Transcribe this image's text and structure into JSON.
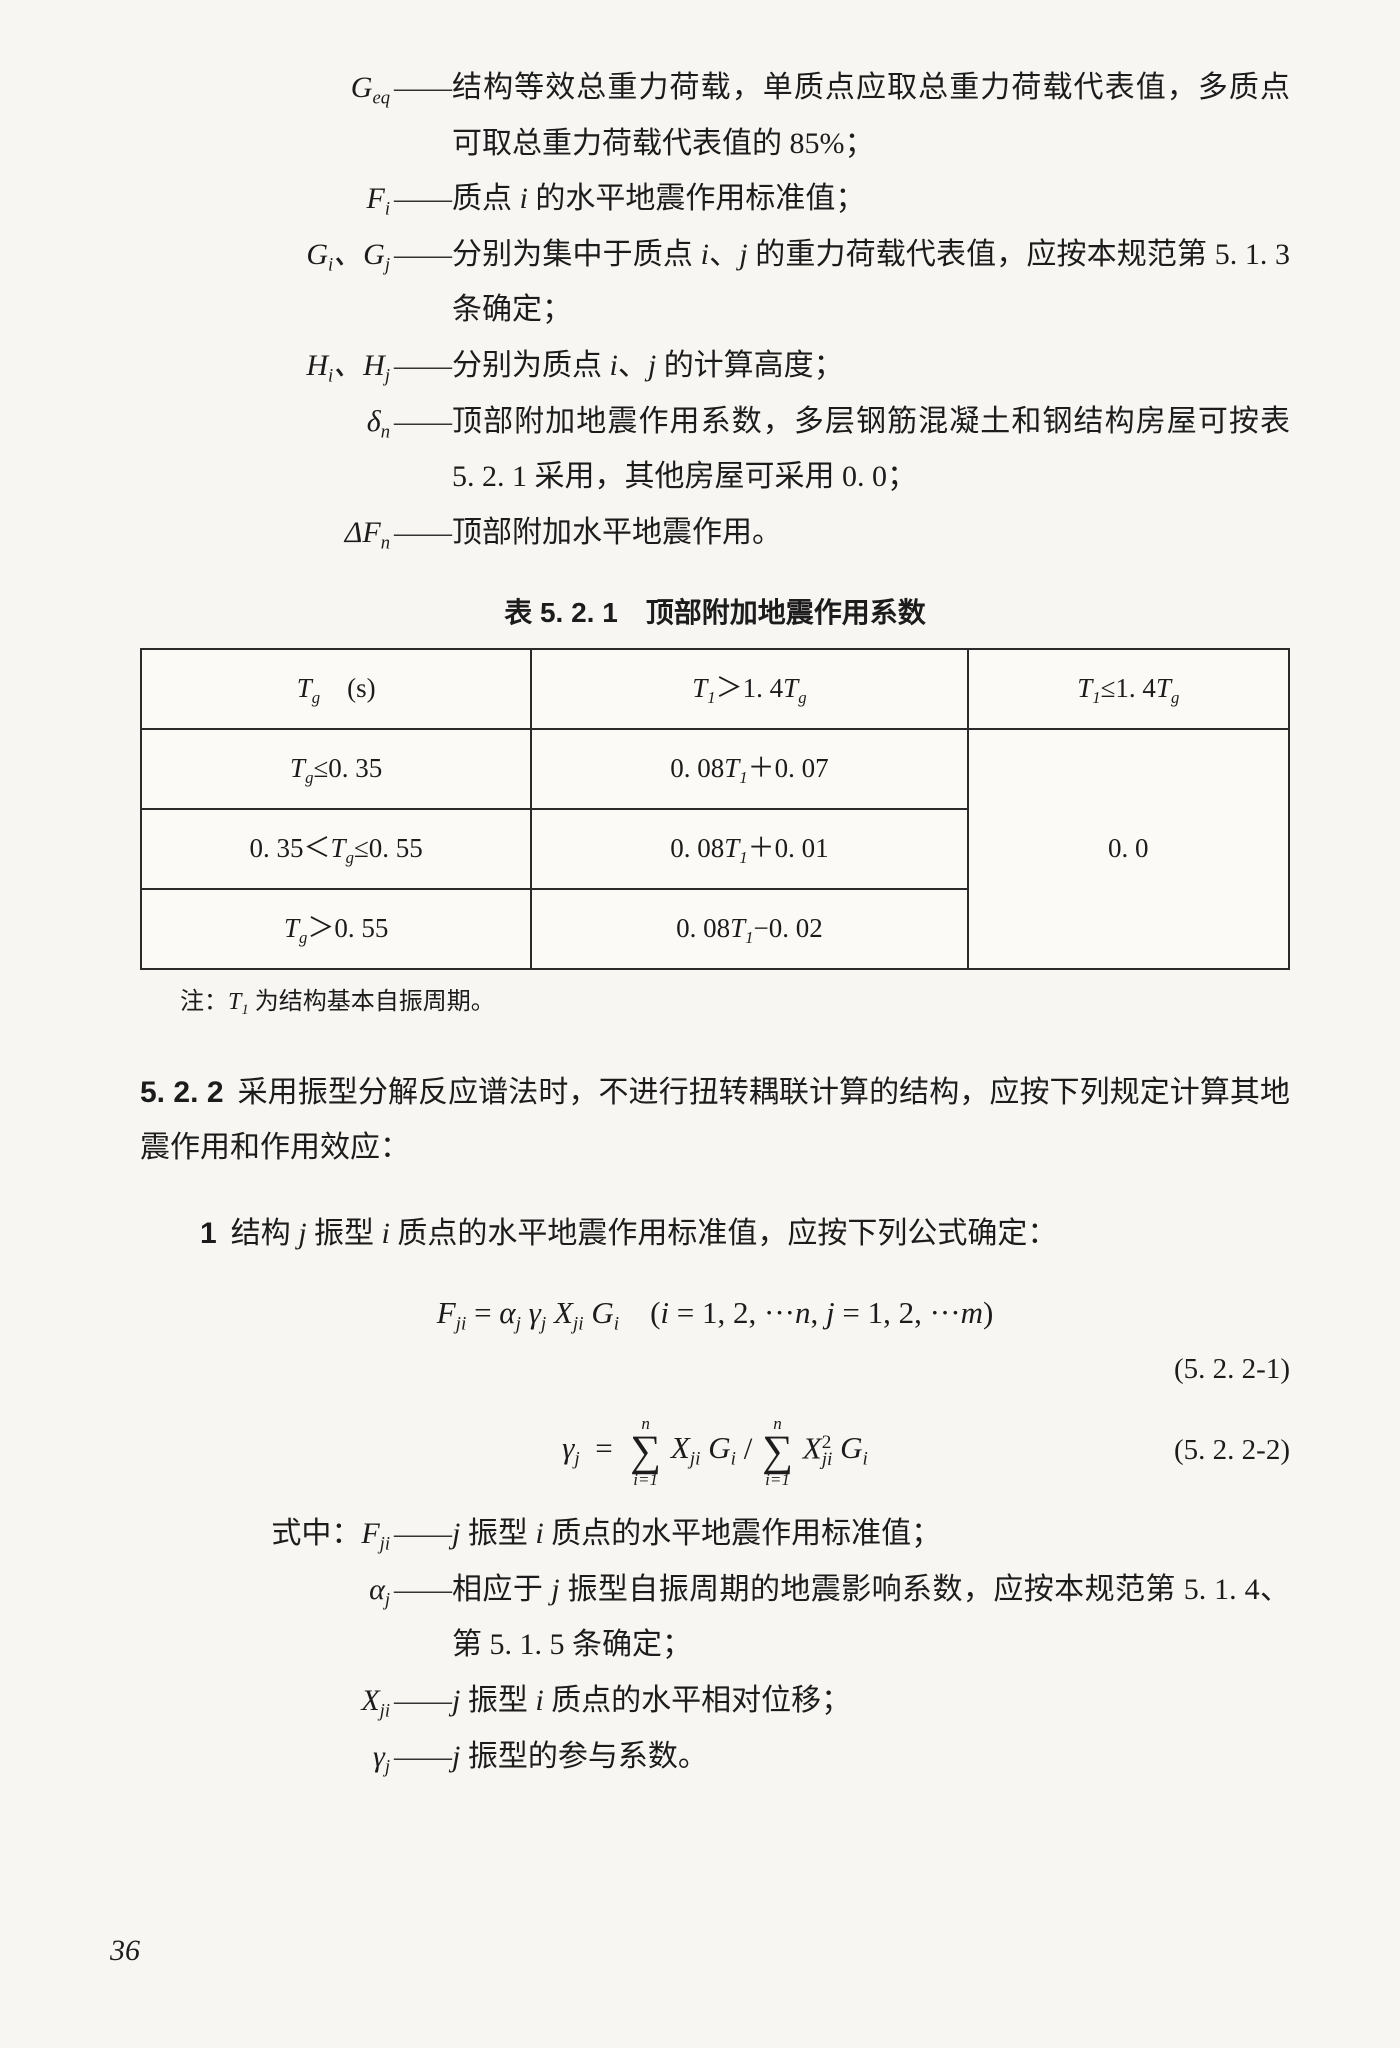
{
  "defs_top": [
    {
      "sym_html": "<span class='ital'>G</span><span class='sub'>eq</span>",
      "desc": "结构等效总重力荷载，单质点应取总重力荷载代表值，多质点可取总重力荷载代表值的 85%；"
    },
    {
      "sym_html": "<span class='ital'>F<span class='sub'>i</span></span>",
      "desc": "质点 <span class='ital'>i</span> 的水平地震作用标准值；"
    },
    {
      "sym_html": "<span class='ital'>G<span class='sub'>i</span></span>、<span class='ital'>G<span class='sub'>j</span></span>",
      "desc": "分别为集中于质点 <span class='ital'>i</span>、<span class='ital'>j</span> 的重力荷载代表值，应按本规范第 5. 1. 3 条确定；"
    },
    {
      "sym_html": "<span class='ital'>H<span class='sub'>i</span></span>、<span class='ital'>H<span class='sub'>j</span></span>",
      "desc": "分别为质点 <span class='ital'>i</span>、<span class='ital'>j</span> 的计算高度；"
    },
    {
      "sym_html": "<span class='ital'>δ<span class='sub'>n</span></span>",
      "desc": "顶部附加地震作用系数，多层钢筋混凝土和钢结构房屋可按表 5. 2. 1 采用，其他房屋可采用 0. 0；"
    },
    {
      "sym_html": "Δ<span class='ital'>F<span class='sub'>n</span></span>",
      "desc": "顶部附加水平地震作用。"
    }
  ],
  "table": {
    "caption": "表 5. 2. 1　顶部附加地震作用系数",
    "header": [
      "<span class='ital'>T</span><span class='sub'>g</span>　(s)",
      "<span class='ital'>T</span><span class='sub'>1</span>＞1. 4<span class='ital'>T</span><span class='sub'>g</span>",
      "<span class='ital'>T</span><span class='sub'>1</span>≤1. 4<span class='ital'>T</span><span class='sub'>g</span>"
    ],
    "rows": [
      [
        "<span class='ital'>T</span><span class='sub'>g</span>≤0. 35",
        "0. 08<span class='ital'>T</span><span class='sub'>1</span>＋0. 07"
      ],
      [
        "0. 35＜<span class='ital'>T</span><span class='sub'>g</span>≤0. 55",
        "0. 08<span class='ital'>T</span><span class='sub'>1</span>＋0. 01"
      ],
      [
        "<span class='ital'>T</span><span class='sub'>g</span>＞0. 55",
        "0. 08<span class='ital'>T</span><span class='sub'>1</span>−0. 02"
      ]
    ],
    "col3_merged": "0. 0",
    "note": "注：<span class='ital'>T</span><span class='sub'>1</span> 为结构基本自振周期。",
    "col_widths": [
      "34%",
      "38%",
      "28%"
    ],
    "border_color": "#2a2a2a"
  },
  "section": {
    "number": "5. 2. 2",
    "text": "采用振型分解反应谱法时，不进行扭转耦联计算的结构，应按下列规定计算其地震作用和作用效应："
  },
  "clause1": {
    "num": "1",
    "text": "结构 <span class='ital'>j</span> 振型 <span class='ital'>i</span> 质点的水平地震作用标准值，应按下列公式确定："
  },
  "eq1": {
    "body_html": "<span class='ital'>F<span class='sub'>ji</span></span> <span class='rm'>=</span> <span class='ital'>α<span class='sub'>j</span> γ<span class='sub'>j</span> X<span class='sub'>ji</span> G<span class='sub'>i</span></span>　<span class='rm'>(</span><span class='ital'>i</span> <span class='rm'>= 1, 2, ···</span><span class='ital'>n</span><span class='rm'>,</span> <span class='ital'>j</span> <span class='rm'>= 1, 2, ···</span><span class='ital'>m</span><span class='rm'>)</span>",
    "number": "(5. 2. 2-1)"
  },
  "eq2": {
    "body_html": "<span class='ital'>γ<span class='sub'>j</span></span> <span class='rm'>&nbsp;=&nbsp;</span> <span class='sum'><span class='top'>n</span><span class='sigma'>∑</span><span class='bot'>i=1</span></span> <span class='ital'>X<span class='sub'>ji</span> G<span class='sub'>i</span></span> <span class='rm'>/</span> <span class='sum'><span class='top'>n</span><span class='sigma'>∑</span><span class='bot'>i=1</span></span> <span class='ital'>X</span><span class='sup rm'>2</span><span class='sub' style='margin-left:-0.5em'>ji</span> <span class='ital'>G<span class='sub'>i</span></span>",
    "number": "(5. 2. 2-2)"
  },
  "where_label": "式中：",
  "defs_bottom": [
    {
      "sym_html": "<span class='ital'>F<span class='sub'>ji</span></span>",
      "desc": "<span class='ital'>j</span> 振型 <span class='ital'>i</span> 质点的水平地震作用标准值；"
    },
    {
      "sym_html": "<span class='ital'>α<span class='sub'>j</span></span>",
      "desc": "相应于 <span class='ital'>j</span> 振型自振周期的地震影响系数，应按本规范第 5. 1. 4、第 5. 1. 5 条确定；"
    },
    {
      "sym_html": "<span class='ital'>X<span class='sub'>ji</span></span>",
      "desc": "<span class='ital'>j</span> 振型 <span class='ital'>i</span> 质点的水平相对位移；"
    },
    {
      "sym_html": "<span class='ital'>γ<span class='sub'>j</span></span>",
      "desc": "<span class='ital'>j</span> 振型的参与系数。"
    }
  ],
  "page_number": "36",
  "dash": "——"
}
